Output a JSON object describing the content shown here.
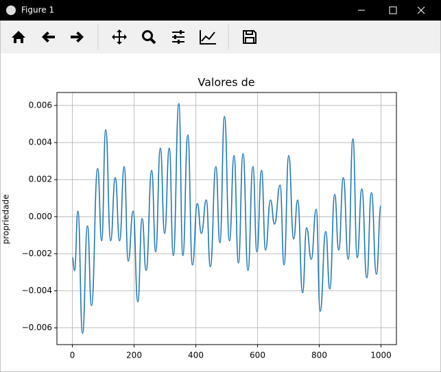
{
  "window": {
    "title": "Figure 1"
  },
  "chart_data": {
    "type": "line",
    "title": "Valores de",
    "y_label": "propriedade",
    "x": [
      0,
      7,
      18,
      33,
      49,
      62,
      82,
      95,
      108,
      124,
      139,
      153,
      168,
      181,
      197,
      212,
      226,
      239,
      257,
      270,
      285,
      299,
      314,
      327,
      345,
      358,
      374,
      389,
      405,
      418,
      434,
      447,
      465,
      478,
      493,
      509,
      524,
      538,
      553,
      569,
      585,
      598,
      613,
      626,
      642,
      655,
      673,
      686,
      701,
      717,
      730,
      746,
      759,
      774,
      790,
      803,
      821,
      834,
      850,
      863,
      878,
      894,
      909,
      923,
      938,
      954,
      969,
      985,
      1000
    ],
    "series": [
      {
        "color": "#1f77b4",
        "values": [
          -0.0022,
          -0.0029,
          0.0003,
          -0.0063,
          -0.0005,
          -0.0048,
          0.0026,
          -0.0013,
          0.0047,
          -0.0013,
          0.0021,
          -0.0013,
          0.0027,
          -0.0024,
          0.0003,
          -0.0046,
          -0.0001,
          -0.0029,
          0.0025,
          -0.0019,
          0.0037,
          -0.0009,
          0.0037,
          -0.0021,
          0.0061,
          -0.0021,
          0.0044,
          -0.0026,
          0.0007,
          -0.0009,
          0.0009,
          -0.0027,
          0.0027,
          -0.0014,
          0.0054,
          -0.0013,
          0.0033,
          -0.0025,
          0.0034,
          -0.0029,
          0.0027,
          -0.0019,
          0.0025,
          -0.0018,
          0.0009,
          -0.0004,
          0.0017,
          -0.0026,
          0.0033,
          -0.0012,
          0.0009,
          -0.0041,
          -0.0006,
          -0.0023,
          0.0004,
          -0.0051,
          -0.0008,
          -0.0039,
          0.0012,
          -0.0018,
          0.0021,
          -0.0023,
          0.0042,
          -0.0022,
          0.0015,
          -0.0033,
          0.0013,
          -0.0031,
          0.0006
        ]
      }
    ],
    "xlim": [
      -50,
      1050
    ],
    "xticks": [
      0,
      200,
      400,
      600,
      800,
      1000
    ],
    "ylim": [
      -0.0069,
      0.0067
    ],
    "yticks": [
      {
        "value": -0.006,
        "label": "−0.006"
      },
      {
        "value": -0.004,
        "label": "−0.004"
      },
      {
        "value": -0.002,
        "label": "−0.002"
      },
      {
        "value": 0,
        "label": "0.000"
      },
      0.002,
      0.004,
      0.006
    ],
    "grid": true
  }
}
